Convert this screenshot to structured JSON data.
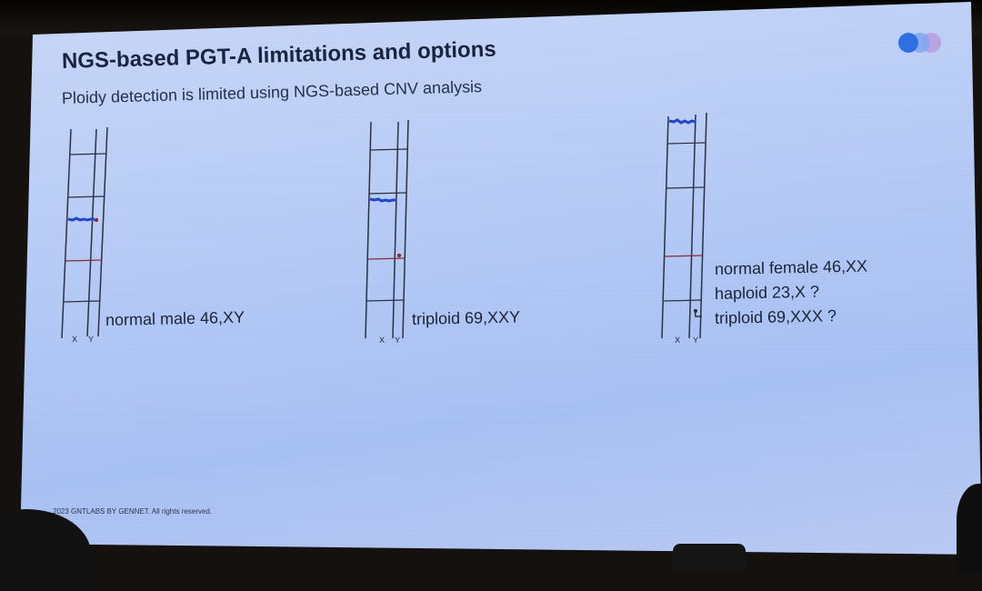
{
  "slide": {
    "title": "NGS-based PGT-A limitations and options",
    "subtitle": "Ploidy detection is limited using NGS-based CNV analysis",
    "footer": "2023 GNTLABS BY GENNET. All rights reserved."
  },
  "panels": [
    {
      "name": "panel-normal-male",
      "labels": [
        "normal male 46,XY"
      ],
      "axis_ticks": [
        "X",
        "Y"
      ]
    },
    {
      "name": "panel-triploid-xxy",
      "labels": [
        "triploid 69,XXY"
      ],
      "axis_ticks": [
        "X",
        "Y"
      ]
    },
    {
      "name": "panel-ambiguous",
      "labels": [
        "normal female 46,XX",
        "haploid 23,X ?",
        "triploid 69,XXX ?"
      ],
      "axis_ticks": [
        "X",
        "Y"
      ]
    }
  ],
  "colors": {
    "screen": "#b7cbf5",
    "title_text": "#1a2440",
    "plot_lines": "#2b3140",
    "cnv_signal": "#2247c8",
    "reference_line": "#8b2a3a",
    "logo_blue": "#2f6fe0",
    "logo_purple": "#b9a3e0"
  }
}
